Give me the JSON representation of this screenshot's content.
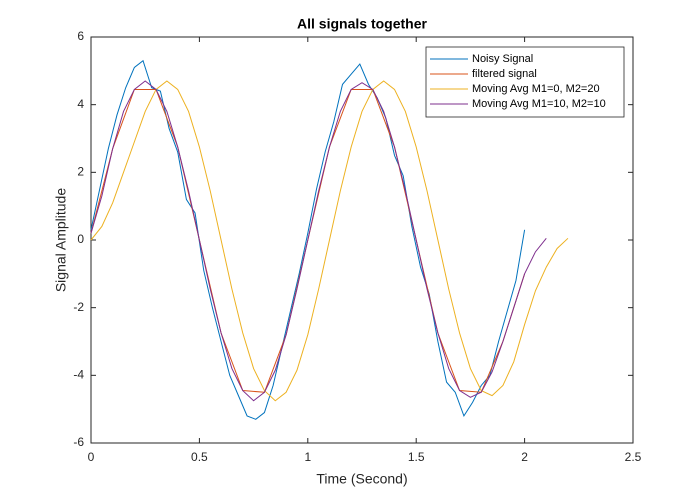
{
  "chart_data": {
    "type": "line",
    "title": "All signals together",
    "xlabel": "Time (Second)",
    "ylabel": "Signal Amplitude",
    "xlim": [
      0,
      2.5
    ],
    "ylim": [
      -6,
      6
    ],
    "xticks": [
      0,
      0.5,
      1,
      1.5,
      2,
      2.5
    ],
    "yticks": [
      -6,
      -4,
      -2,
      0,
      2,
      4,
      6
    ],
    "grid": false,
    "legend": "northeast",
    "series": [
      {
        "name": "Noisy Signal",
        "color": "#0072BD",
        "x": [
          0,
          0.04,
          0.08,
          0.12,
          0.16,
          0.2,
          0.24,
          0.28,
          0.32,
          0.36,
          0.4,
          0.44,
          0.48,
          0.52,
          0.56,
          0.6,
          0.64,
          0.68,
          0.72,
          0.76,
          0.8,
          0.84,
          0.88,
          0.92,
          0.96,
          1,
          1.04,
          1.08,
          1.12,
          1.16,
          1.2,
          1.24,
          1.28,
          1.32,
          1.36,
          1.4,
          1.44,
          1.48,
          1.52,
          1.56,
          1.6,
          1.64,
          1.68,
          1.72,
          1.76,
          1.8,
          1.84,
          1.88,
          1.92,
          1.96,
          2
        ],
        "values": [
          0.3,
          1.5,
          2.7,
          3.7,
          4.5,
          5.1,
          5.3,
          4.5,
          4.4,
          3.3,
          2.6,
          1.2,
          0.8,
          -0.9,
          -2.0,
          -3.0,
          -4.0,
          -4.6,
          -5.2,
          -5.3,
          -5.1,
          -4.3,
          -3.2,
          -2.1,
          -1.0,
          0.2,
          1.5,
          2.6,
          3.5,
          4.6,
          4.9,
          5.2,
          4.6,
          4.2,
          3.6,
          2.5,
          1.9,
          0.4,
          -0.8,
          -1.6,
          -3.0,
          -4.2,
          -4.5,
          -5.2,
          -4.8,
          -4.3,
          -4.0,
          -3.0,
          -2.1,
          -1.2,
          0.3
        ]
      },
      {
        "name": "filtered signal",
        "color": "#D95319",
        "x": [
          0,
          0.1,
          0.2,
          0.3,
          0.4,
          0.5,
          0.6,
          0.7,
          0.8,
          0.9,
          1,
          1.1,
          1.2,
          1.3,
          1.4,
          1.5,
          1.6,
          1.7,
          1.8,
          1.9,
          2
        ],
        "values": [
          0.2,
          2.7,
          4.45,
          4.45,
          2.75,
          0,
          -2.75,
          -4.45,
          -4.5,
          -2.8,
          0,
          2.75,
          4.45,
          4.45,
          2.75,
          0,
          -2.75,
          -4.45,
          -4.5,
          -3.0,
          -1.0
        ]
      },
      {
        "name": "Moving Avg M1=0, M2=20",
        "color": "#EDB120",
        "x": [
          0,
          0.05,
          0.1,
          0.15,
          0.2,
          0.25,
          0.3,
          0.35,
          0.4,
          0.45,
          0.5,
          0.55,
          0.6,
          0.65,
          0.7,
          0.75,
          0.8,
          0.85,
          0.9,
          0.95,
          1,
          1.05,
          1.1,
          1.15,
          1.2,
          1.25,
          1.3,
          1.35,
          1.4,
          1.45,
          1.5,
          1.55,
          1.6,
          1.65,
          1.7,
          1.75,
          1.8,
          1.85,
          1.9,
          1.95,
          2,
          2.05,
          2.1,
          2.15,
          2.2
        ],
        "values": [
          0,
          0.4,
          1.1,
          2.0,
          2.9,
          3.8,
          4.45,
          4.7,
          4.45,
          3.8,
          2.75,
          1.45,
          0,
          -1.45,
          -2.75,
          -3.8,
          -4.45,
          -4.75,
          -4.5,
          -3.85,
          -2.8,
          -1.45,
          0,
          1.45,
          2.75,
          3.8,
          4.45,
          4.7,
          4.45,
          3.8,
          2.75,
          1.45,
          0,
          -1.45,
          -2.75,
          -3.8,
          -4.45,
          -4.6,
          -4.3,
          -3.6,
          -2.5,
          -1.5,
          -0.8,
          -0.25,
          0.05
        ]
      },
      {
        "name": "Moving Avg M1=10, M2=10",
        "color": "#7E2F8E",
        "x": [
          0,
          0.05,
          0.1,
          0.15,
          0.2,
          0.25,
          0.3,
          0.35,
          0.4,
          0.45,
          0.5,
          0.55,
          0.6,
          0.65,
          0.7,
          0.75,
          0.8,
          0.85,
          0.9,
          0.95,
          1,
          1.05,
          1.1,
          1.15,
          1.2,
          1.25,
          1.3,
          1.35,
          1.4,
          1.45,
          1.5,
          1.55,
          1.6,
          1.65,
          1.7,
          1.75,
          1.8,
          1.85,
          1.9,
          1.95,
          2,
          2.05,
          2.1
        ],
        "values": [
          0.2,
          1.3,
          2.7,
          3.8,
          4.45,
          4.7,
          4.45,
          3.8,
          2.75,
          1.45,
          0,
          -1.45,
          -2.75,
          -3.8,
          -4.45,
          -4.75,
          -4.5,
          -3.85,
          -2.8,
          -1.45,
          0,
          1.45,
          2.75,
          3.8,
          4.45,
          4.65,
          4.45,
          3.8,
          2.75,
          1.45,
          0,
          -1.45,
          -2.75,
          -3.8,
          -4.45,
          -4.65,
          -4.5,
          -3.9,
          -3.0,
          -2.0,
          -1.0,
          -0.35,
          0.05
        ]
      }
    ]
  }
}
